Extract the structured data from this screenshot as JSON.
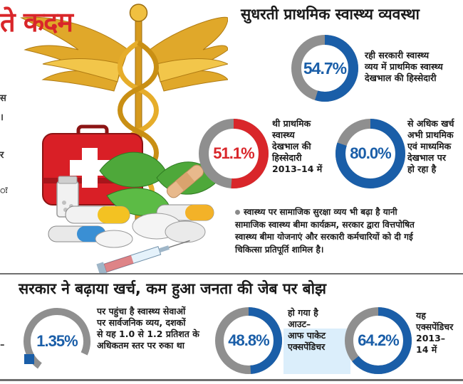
{
  "page": {
    "headline": "ते कदम",
    "side_fragments": [
      "स",
      "।",
      "र",
      "ः",
      "–"
    ]
  },
  "top_section": {
    "title": "सुधरती प्राथमिक स्वास्थ्य व्यवस्था",
    "stats": [
      {
        "value": "54.7%",
        "fraction": 0.547,
        "desc_lines": [
          "रही सरकारी स्वास्थ्य",
          "व्यय में प्राथमिक स्वास्थ्य",
          "देखभाल की हिस्सेदारी"
        ]
      },
      {
        "value": "51.1%",
        "fraction": 0.511,
        "desc_lines": [
          "थी प्राथमिक",
          "स्वास्थ्य",
          "देखभाल की",
          "हिस्सेदारी",
          "2013–14 में"
        ]
      },
      {
        "value": "80.0%",
        "fraction": 0.8,
        "desc_lines": [
          "से अधिक खर्च",
          "अभी प्राथमिक",
          "एवं माध्यमिक",
          "देखभाल पर",
          "हो रहा है"
        ]
      }
    ],
    "bullet_lines": [
      "स्वास्थ्य पर सामाजिक सुरक्षा व्यय भी बढ़ा है यानी",
      "सामाजिक स्वास्थ्य बीमा कार्यक्रम, सरकार द्वारा वित्तपोषित",
      "स्वास्थ्य बीमा योजनाएं और सरकारी कर्मचारियों को दी गई",
      "चिकित्सा प्रतिपूर्ति शामिल है।"
    ]
  },
  "bottom_section": {
    "title": "सरकार ने बढ़ाया खर्च, कम हुआ जनता की जेब पर बोझ",
    "stats": [
      {
        "value": "1.35%",
        "fraction": 0.9,
        "desc_lines": [
          "पर पहुंचा है स्वास्थ्य सेवाओं",
          "पर सार्वजनिक व्यय, दशकों",
          "से यह 1.0 से 1.2 प्रतिशत के",
          "अधिकतम स्तर पर रुका था"
        ]
      },
      {
        "value": "48.8%",
        "fraction": 0.488,
        "desc_lines": [
          "हो गया है",
          "आउट–",
          "आफ पाकेट",
          "एक्सपेंडिचर"
        ]
      },
      {
        "value": "64.2%",
        "fraction": 0.642,
        "desc_lines": [
          "यह",
          "एक्सपेंडिचर",
          "2013–",
          "14 में"
        ]
      }
    ]
  },
  "colors": {
    "blue": "#1a5ea8",
    "red": "#d9262a",
    "grey": "#8f8f8f"
  }
}
